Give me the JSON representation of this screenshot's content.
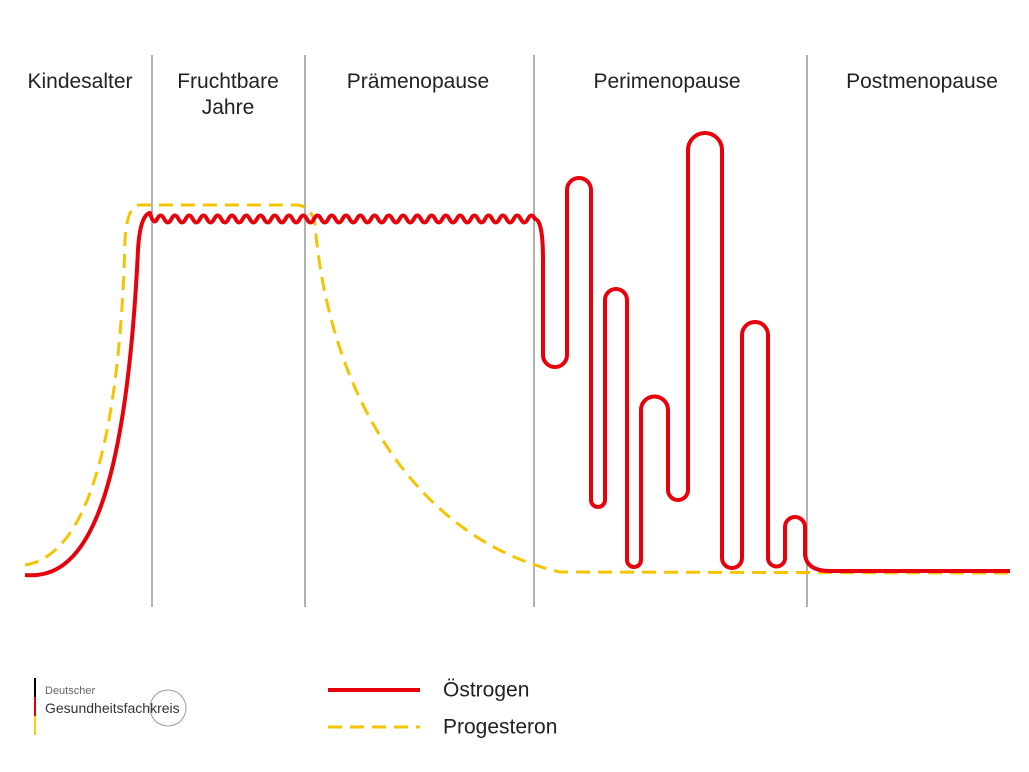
{
  "phases": [
    [
      "Kindesalter"
    ],
    [
      "Fruchtbare",
      "Jahre"
    ],
    [
      "Prämenopause"
    ],
    [
      "Perimenopause"
    ],
    [
      "Postmenopause"
    ]
  ],
  "legend": [
    "Östrogen",
    "Progesteron"
  ],
  "logo": {
    "line1": "Deutscher",
    "line2": "Gesundheitsfachkreis"
  }
}
